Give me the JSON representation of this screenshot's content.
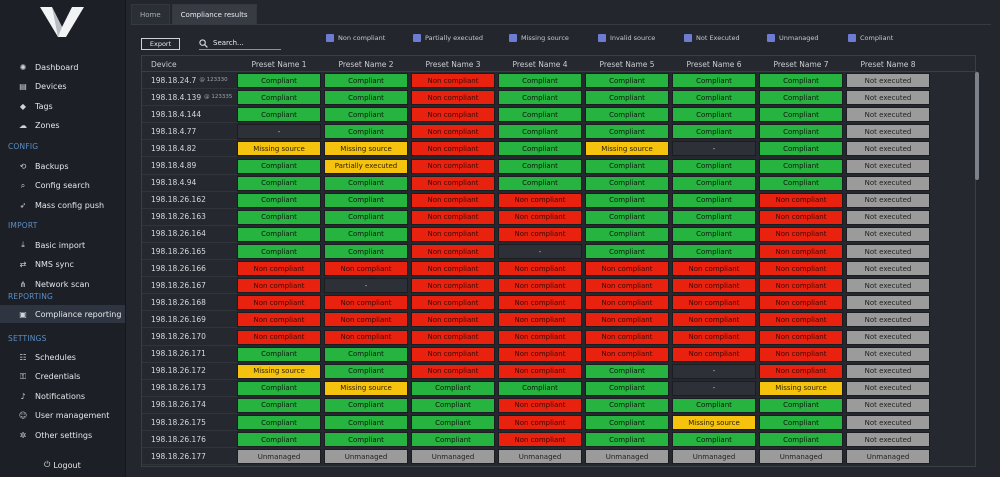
{
  "sidebar": {
    "items_main": [
      {
        "label": "Dashboard",
        "icon": "palette-icon"
      },
      {
        "label": "Devices",
        "icon": "devices-icon"
      },
      {
        "label": "Tags",
        "icon": "tag-icon"
      },
      {
        "label": "Zones",
        "icon": "cloud-icon"
      }
    ],
    "section_config": "CONFIG",
    "items_config": [
      {
        "label": "Backups",
        "icon": "backup-icon"
      },
      {
        "label": "Config search",
        "icon": "search-icon"
      },
      {
        "label": "Mass config push",
        "icon": "rocket-icon"
      }
    ],
    "section_import": "IMPORT",
    "items_import": [
      {
        "label": "Basic import",
        "icon": "import-icon"
      },
      {
        "label": "NMS sync",
        "icon": "sync-icon"
      },
      {
        "label": "Network scan",
        "icon": "network-icon"
      }
    ],
    "section_reporting": "REPORTING",
    "items_reporting": [
      {
        "label": "Compliance reporting",
        "icon": "clipboard-icon"
      }
    ],
    "section_settings": "SETTINGS",
    "items_settings": [
      {
        "label": "Schedules",
        "icon": "schedule-icon"
      },
      {
        "label": "Credentials",
        "icon": "key-icon"
      },
      {
        "label": "Notifications",
        "icon": "bell-icon"
      },
      {
        "label": "User management",
        "icon": "users-icon"
      },
      {
        "label": "Other settings",
        "icon": "gears-icon"
      }
    ],
    "logout": "Logout"
  },
  "tabs": [
    "Home",
    "Compliance results"
  ],
  "toolbar": {
    "export_label": "Export",
    "search_placeholder": "Search..."
  },
  "legend": [
    "Non compliant",
    "Partially executed",
    "Missing source",
    "Invalid source",
    "Not Executed",
    "Unmanaged",
    "Compliant"
  ],
  "colors": {
    "compliant": "#27b33f",
    "non_compliant": "#e8220f",
    "missing_source": "#f5c30e",
    "not_executed": "#9b9b9b",
    "legend_swatch": "#6d7bd1"
  },
  "table": {
    "headers": [
      "Device",
      "Preset Name 1",
      "Preset Name 2",
      "Preset Name 3",
      "Preset Name 4",
      "Preset Name 5",
      "Preset Name 6",
      "Preset Name 7",
      "Preset Name 8"
    ],
    "rows": [
      {
        "device": "198.18.24.7",
        "port": "@ 123330",
        "cells": [
          "Compliant",
          "Compliant",
          "Non compliant",
          "Compliant",
          "Compliant",
          "Compliant",
          "Compliant",
          "Not executed"
        ]
      },
      {
        "device": "198.18.4.139",
        "port": "@ 123335",
        "cells": [
          "Compliant",
          "Compliant",
          "Non compliant",
          "Compliant",
          "Compliant",
          "Compliant",
          "Compliant",
          "Not executed"
        ]
      },
      {
        "device": "198.18.4.144",
        "port": "",
        "cells": [
          "Compliant",
          "Compliant",
          "Non compliant",
          "Compliant",
          "Compliant",
          "Compliant",
          "Compliant",
          "Not executed"
        ]
      },
      {
        "device": "198.18.4.77",
        "port": "",
        "cells": [
          "-",
          "Compliant",
          "Non compliant",
          "Compliant",
          "Compliant",
          "Compliant",
          "Compliant",
          "Not executed"
        ]
      },
      {
        "device": "198.18.4.82",
        "port": "",
        "cells": [
          "Missing source",
          "Missing source",
          "Non compliant",
          "Compliant",
          "Missing source",
          "-",
          "Compliant",
          "Not executed"
        ]
      },
      {
        "device": "198.18.4.89",
        "port": "",
        "cells": [
          "Compliant",
          "Partially executed",
          "Non compliant",
          "Compliant",
          "Compliant",
          "Compliant",
          "Compliant",
          "Not executed"
        ]
      },
      {
        "device": "198.18.4.94",
        "port": "",
        "cells": [
          "Compliant",
          "Compliant",
          "Non compliant",
          "Compliant",
          "Compliant",
          "Compliant",
          "Compliant",
          "Not executed"
        ]
      },
      {
        "device": "198.18.26.162",
        "port": "",
        "cells": [
          "Compliant",
          "Compliant",
          "Non compliant",
          "Non compliant",
          "Compliant",
          "Compliant",
          "Non compliant",
          "Not executed"
        ]
      },
      {
        "device": "198.18.26.163",
        "port": "",
        "cells": [
          "Compliant",
          "Compliant",
          "Non compliant",
          "Non compliant",
          "Compliant",
          "Compliant",
          "Non compliant",
          "Not executed"
        ]
      },
      {
        "device": "198.18.26.164",
        "port": "",
        "cells": [
          "Compliant",
          "Compliant",
          "Non compliant",
          "Non compliant",
          "Compliant",
          "Compliant",
          "Non compliant",
          "Not executed"
        ]
      },
      {
        "device": "198.18.26.165",
        "port": "",
        "cells": [
          "Compliant",
          "Compliant",
          "Non compliant",
          "-",
          "Compliant",
          "Compliant",
          "Non compliant",
          "Not executed"
        ]
      },
      {
        "device": "198.18.26.166",
        "port": "",
        "cells": [
          "Non compliant",
          "Non compliant",
          "Non compliant",
          "Non compliant",
          "Non compliant",
          "Non compliant",
          "Non compliant",
          "Not executed"
        ]
      },
      {
        "device": "198.18.26.167",
        "port": "",
        "cells": [
          "Non compliant",
          "-",
          "Non compliant",
          "Non compliant",
          "Non compliant",
          "Non compliant",
          "Non compliant",
          "Not executed"
        ]
      },
      {
        "device": "198.18.26.168",
        "port": "",
        "cells": [
          "Non compliant",
          "Non compliant",
          "Non compliant",
          "Non compliant",
          "Non compliant",
          "Non compliant",
          "Non compliant",
          "Not executed"
        ]
      },
      {
        "device": "198.18.26.169",
        "port": "",
        "cells": [
          "Non compliant",
          "Non compliant",
          "Non compliant",
          "Non compliant",
          "Non compliant",
          "Non compliant",
          "Non compliant",
          "Not executed"
        ]
      },
      {
        "device": "198.18.26.170",
        "port": "",
        "cells": [
          "Non compliant",
          "Non compliant",
          "Non compliant",
          "Non compliant",
          "Non compliant",
          "Non compliant",
          "Non compliant",
          "Not executed"
        ]
      },
      {
        "device": "198.18.26.171",
        "port": "",
        "cells": [
          "Compliant",
          "Compliant",
          "Non compliant",
          "Non compliant",
          "Non compliant",
          "Non compliant",
          "Non compliant",
          "Not executed"
        ]
      },
      {
        "device": "198.18.26.172",
        "port": "",
        "cells": [
          "Missing source",
          "Compliant",
          "Non compliant",
          "Non compliant",
          "Compliant",
          "-",
          "Non compliant",
          "Not executed"
        ]
      },
      {
        "device": "198.18.26.173",
        "port": "",
        "cells": [
          "Compliant",
          "Missing source",
          "Compliant",
          "Compliant",
          "Compliant",
          "-",
          "Missing source",
          "Not executed"
        ]
      },
      {
        "device": "198.18.26.174",
        "port": "",
        "cells": [
          "Compliant",
          "Compliant",
          "Compliant",
          "Non compliant",
          "Compliant",
          "Compliant",
          "Compliant",
          "Not executed"
        ]
      },
      {
        "device": "198.18.26.175",
        "port": "",
        "cells": [
          "Compliant",
          "Compliant",
          "Compliant",
          "Non compliant",
          "Compliant",
          "Missing source",
          "Compliant",
          "Not executed"
        ]
      },
      {
        "device": "198.18.26.176",
        "port": "",
        "cells": [
          "Compliant",
          "Compliant",
          "Compliant",
          "Non compliant",
          "Compliant",
          "Compliant",
          "Compliant",
          "Not executed"
        ]
      },
      {
        "device": "198.18.26.177",
        "port": "",
        "cells": [
          "Unmanaged",
          "Unmanaged",
          "Unmanaged",
          "Unmanaged",
          "Unmanaged",
          "Unmanaged",
          "Unmanaged",
          "Unmanaged"
        ]
      }
    ]
  }
}
